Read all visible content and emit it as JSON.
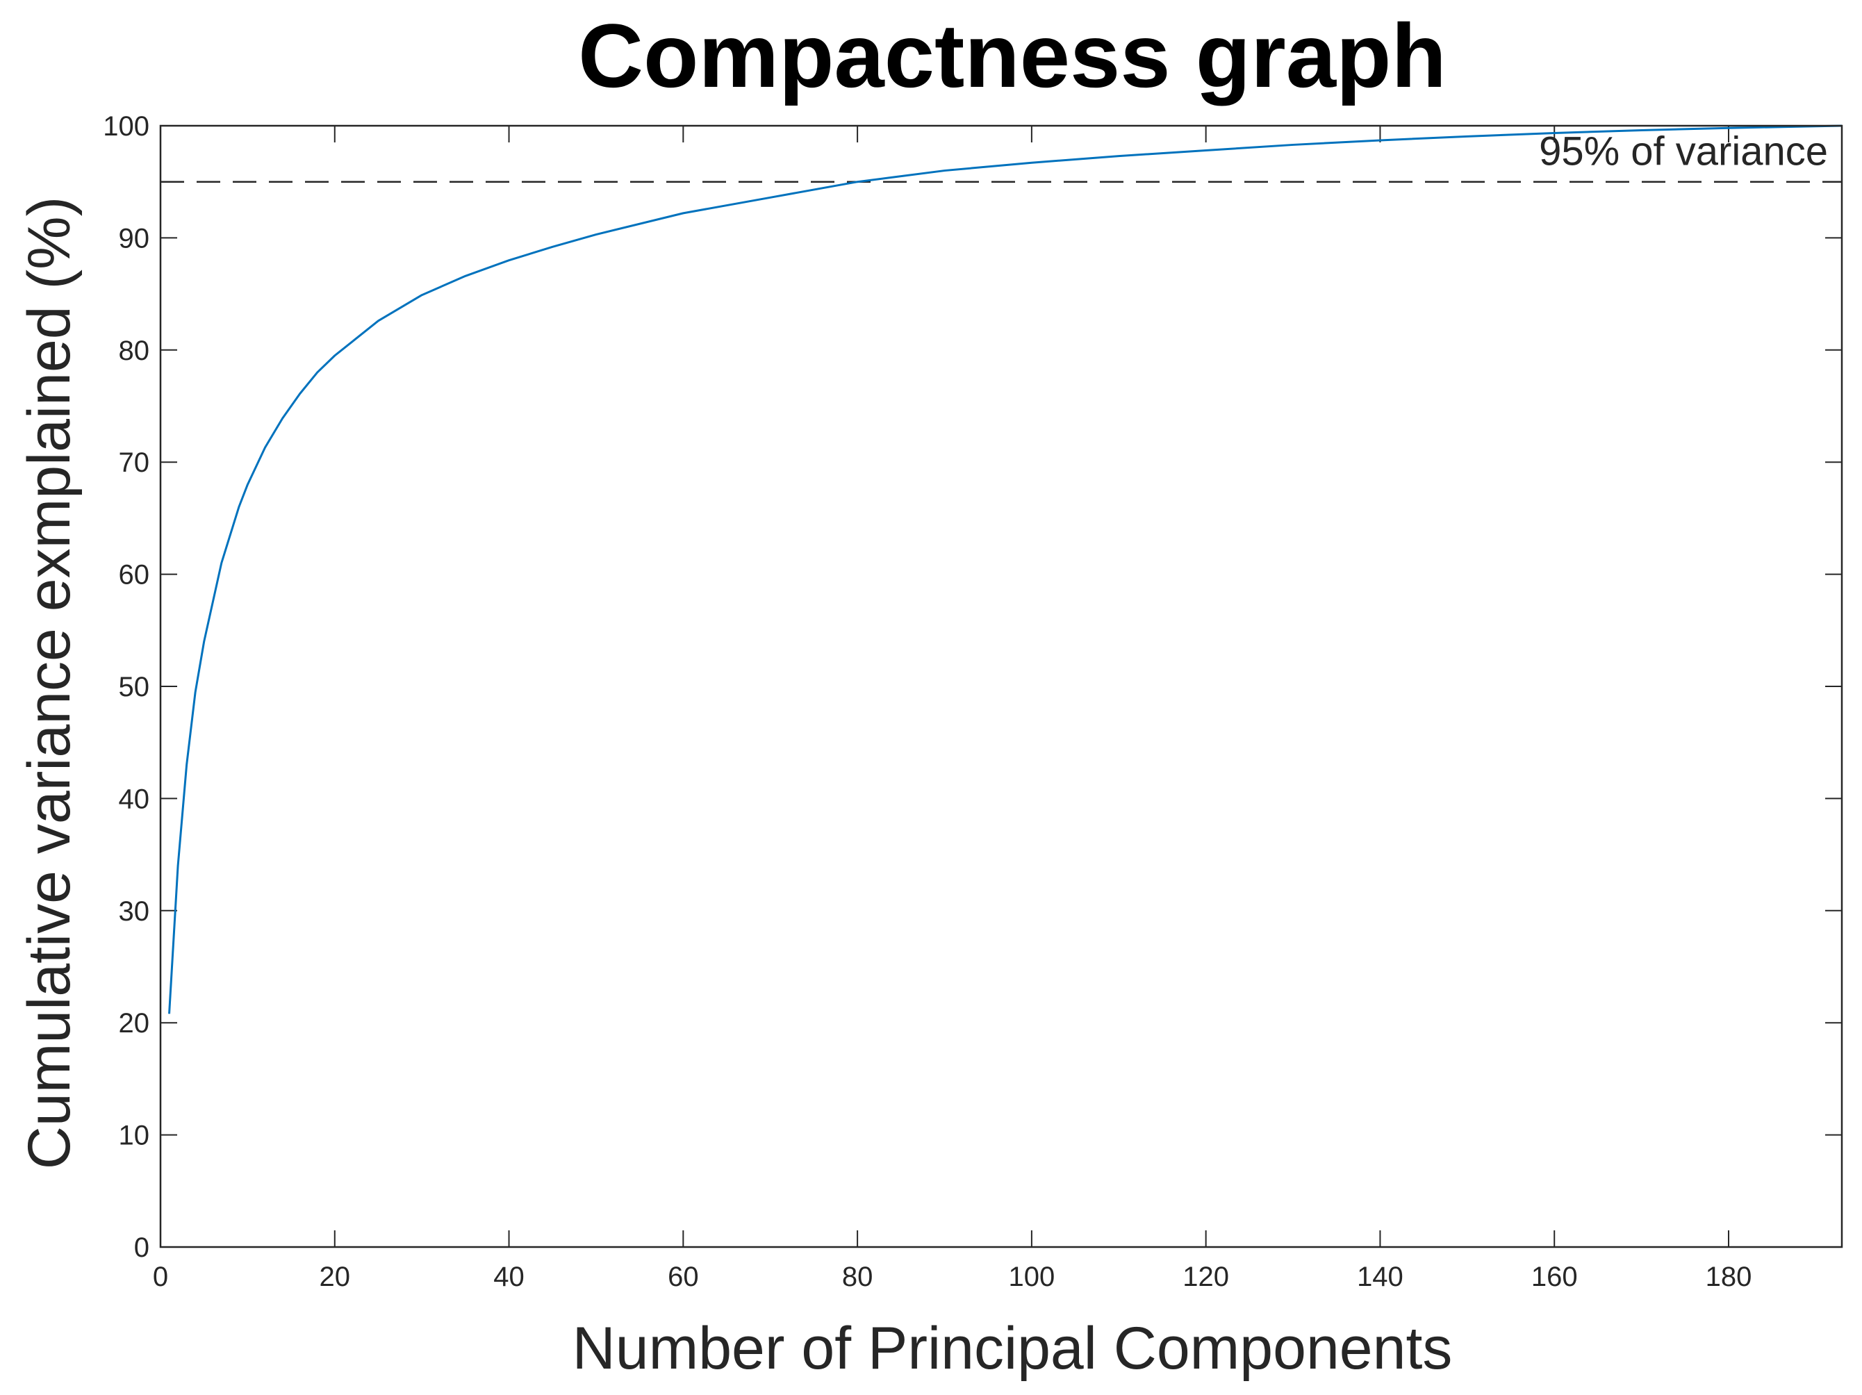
{
  "chart_data": {
    "type": "line",
    "title": "Compactness graph",
    "xlabel": "Number of Principal Components",
    "ylabel": "Cumulative variance exmplained (%)",
    "xlim": [
      0,
      193
    ],
    "ylim": [
      0,
      100
    ],
    "xticks": [
      0,
      20,
      40,
      60,
      80,
      100,
      120,
      140,
      160,
      180
    ],
    "yticks": [
      0,
      10,
      20,
      30,
      40,
      50,
      60,
      70,
      80,
      90,
      100
    ],
    "grid": false,
    "series": [
      {
        "color": "#0072BD",
        "x": [
          1,
          2,
          3,
          4,
          5,
          6,
          7,
          8,
          9,
          10,
          12,
          14,
          16,
          18,
          20,
          25,
          30,
          35,
          40,
          45,
          50,
          60,
          70,
          80,
          90,
          100,
          110,
          120,
          130,
          140,
          150,
          160,
          170,
          180,
          193
        ],
        "y": [
          20.8,
          34,
          43,
          49.5,
          54,
          57.5,
          61,
          63.5,
          66,
          68,
          71.3,
          73.9,
          76.1,
          78,
          79.5,
          82.6,
          84.9,
          86.6,
          88,
          89.2,
          90.3,
          92.2,
          93.6,
          95,
          96,
          96.7,
          97.3,
          97.8,
          98.3,
          98.7,
          99.05,
          99.35,
          99.6,
          99.8,
          100
        ]
      }
    ],
    "reference_line": {
      "y": 95,
      "style": "dashed",
      "color": "#262626",
      "label": "95% of variance"
    }
  }
}
